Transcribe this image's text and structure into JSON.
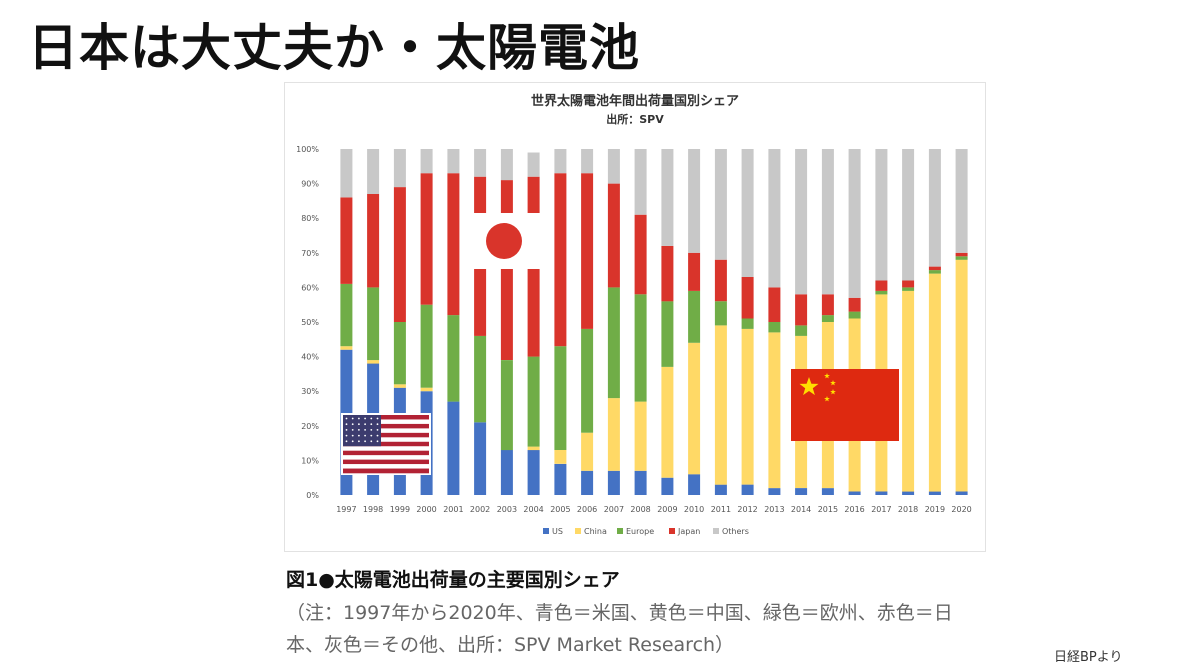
{
  "slide": {
    "title": "日本は大丈夫か・太陽電池",
    "caption_title": "図1●太陽電池出荷量の主要国別シェア",
    "caption_note_line1": "（注：1997年から2020年、青色＝米国、黄色＝中国、緑色＝欧州、赤色＝日",
    "caption_note_line2": "本、灰色＝その他、出所：SPV Market Research）",
    "source_credit": "日経BPより"
  },
  "chart_data": {
    "type": "bar",
    "stacked": true,
    "title": "世界太陽電池年間出荷量国別シェア",
    "subtitle": "出所：SPV",
    "categories": [
      "1997",
      "1998",
      "1999",
      "2000",
      "2001",
      "2002",
      "2003",
      "2004",
      "2005",
      "2006",
      "2007",
      "2008",
      "2009",
      "2010",
      "2011",
      "2012",
      "2013",
      "2014",
      "2015",
      "2016",
      "2017",
      "2018",
      "2019",
      "2020"
    ],
    "ylim": [
      0,
      100
    ],
    "y_ticks": [
      "0%",
      "10%",
      "20%",
      "30%",
      "40%",
      "50%",
      "60%",
      "70%",
      "80%",
      "90%",
      "100%"
    ],
    "grid": false,
    "legend_position": "bottom",
    "series": [
      {
        "name": "US",
        "color": "#4472c4",
        "values": [
          42,
          38,
          31,
          30,
          27,
          21,
          13,
          13,
          9,
          7,
          7,
          7,
          5,
          6,
          3,
          3,
          2,
          2,
          2,
          1,
          1,
          1,
          1,
          1
        ]
      },
      {
        "name": "China",
        "color": "#ffd966",
        "values": [
          1,
          1,
          1,
          1,
          0,
          0,
          0,
          1,
          4,
          11,
          21,
          20,
          32,
          38,
          46,
          45,
          45,
          44,
          48,
          50,
          57,
          58,
          63,
          67
        ]
      },
      {
        "name": "Europe",
        "color": "#70ad47",
        "values": [
          18,
          21,
          18,
          24,
          25,
          25,
          26,
          26,
          30,
          30,
          32,
          31,
          19,
          15,
          7,
          3,
          3,
          3,
          2,
          2,
          1,
          1,
          1,
          1
        ]
      },
      {
        "name": "Japan",
        "color": "#d9342b",
        "values": [
          25,
          27,
          39,
          38,
          41,
          46,
          52,
          52,
          50,
          45,
          30,
          23,
          16,
          11,
          12,
          12,
          10,
          9,
          6,
          4,
          3,
          2,
          1,
          1
        ]
      },
      {
        "name": "Others",
        "color": "#c8c8c8",
        "values": [
          14,
          13,
          11,
          7,
          7,
          8,
          9,
          7,
          7,
          7,
          10,
          19,
          28,
          30,
          32,
          37,
          40,
          42,
          42,
          43,
          38,
          38,
          34,
          30
        ]
      }
    ],
    "overlays": [
      "us-flag",
      "japan-flag",
      "china-flag"
    ]
  }
}
